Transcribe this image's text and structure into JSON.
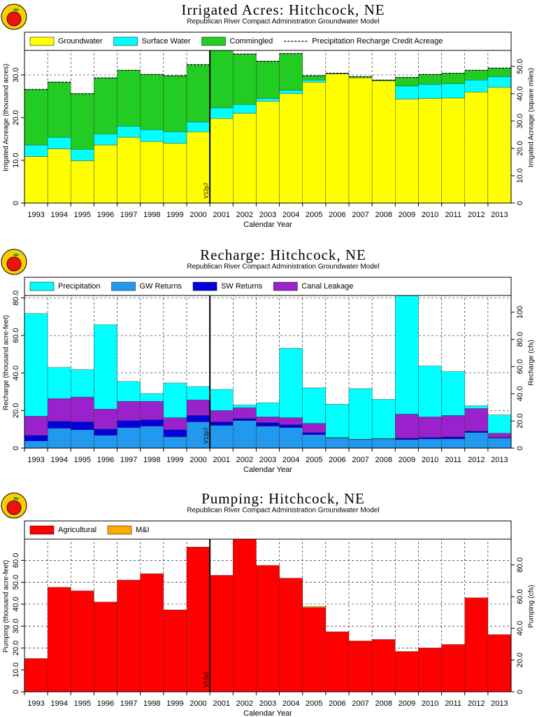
{
  "chart_data": [
    {
      "type": "bar",
      "stacked": true,
      "title": "Irrigated Acres: Hitchcock, NE",
      "subtitle": "Republican River Compact Administration Groundwater Model",
      "xlabel": "Calendar Year",
      "ylabel": "Irrigated Acreage (thousand acres)",
      "y2label": "Irrigated Acreage (square miles)",
      "annotation": "V12p7",
      "categories": [
        "1993",
        "1994",
        "1995",
        "1996",
        "1997",
        "1998",
        "1999",
        "2000",
        "2001",
        "2002",
        "2003",
        "2004",
        "2005",
        "2006",
        "2007",
        "2008",
        "2009",
        "2010",
        "2011",
        "2012",
        "2013"
      ],
      "series": [
        {
          "name": "Groundwater",
          "color": "#ffff00",
          "values": [
            10.9,
            12.7,
            9.9,
            13.6,
            15.4,
            14.4,
            14.0,
            16.7,
            19.8,
            21.0,
            23.8,
            25.6,
            28.3,
            30.2,
            29.3,
            28.6,
            24.3,
            24.5,
            24.6,
            26.0,
            27.1
          ]
        },
        {
          "name": "Surface Water",
          "color": "#00ffff",
          "values": [
            2.7,
            2.7,
            2.7,
            2.6,
            2.6,
            2.8,
            2.7,
            2.3,
            2.5,
            2.1,
            0.7,
            0.8,
            0.5,
            0,
            0,
            0,
            3.1,
            3.3,
            3.3,
            2.8,
            2.5
          ]
        },
        {
          "name": "Commingled",
          "color": "#22cc22",
          "values": [
            13.0,
            12.9,
            13.0,
            13.1,
            13.1,
            12.9,
            13.1,
            13.4,
            13.7,
            11.8,
            8.7,
            8.6,
            1.0,
            0.2,
            0.3,
            0.2,
            2.0,
            2.3,
            2.5,
            2.3,
            2.0
          ]
        },
        {
          "name": "Precipitation Recharge Credit Acreage",
          "color": "#000000",
          "dashed": true,
          "values": [
            26.6,
            28.3,
            25.6,
            29.3,
            31.1,
            30.1,
            29.8,
            32.4,
            36.0,
            34.9,
            33.2,
            35.0,
            29.8,
            30.4,
            29.6,
            28.8,
            29.4,
            30.1,
            30.4,
            31.1,
            31.6
          ]
        }
      ],
      "ylim": [
        0,
        40
      ],
      "yticks": [
        0,
        {
          "value": 10,
          "label": "10.0"
        },
        {
          "value": 20,
          "label": "20.0"
        },
        {
          "value": 30,
          "label": "30.0"
        }
      ],
      "y2lim": [
        0,
        62.5
      ],
      "y2ticks": [
        0,
        {
          "value": 10,
          "label": "10.0"
        },
        {
          "value": 20,
          "label": "20.0"
        },
        {
          "value": 30,
          "label": "30.0"
        },
        {
          "value": 40,
          "label": "40.0"
        },
        {
          "value": 50,
          "label": "50.0"
        }
      ],
      "grid": true
    },
    {
      "type": "bar",
      "stacked": true,
      "title": "Recharge: Hitchcock, NE",
      "subtitle": "Republican River Compact Administration Groundwater Model",
      "xlabel": "Calendar Year",
      "ylabel": "Recharge (thousand acre-feet)",
      "y2label": "Recharge (cfs)",
      "annotation": "V12p7",
      "categories": [
        "1993",
        "1994",
        "1995",
        "1996",
        "1997",
        "1998",
        "1999",
        "2000",
        "2001",
        "2002",
        "2003",
        "2004",
        "2005",
        "2006",
        "2007",
        "2008",
        "2009",
        "2010",
        "2011",
        "2012",
        "2013"
      ],
      "legend_order": [
        3,
        0,
        1,
        2
      ],
      "series": [
        {
          "name": "GW Returns",
          "color": "#2299ee",
          "values": [
            3.8,
            10.6,
            9.8,
            6.8,
            10.9,
            11.7,
            6.0,
            14.0,
            12.1,
            14.7,
            11.7,
            10.9,
            7.2,
            5.3,
            4.5,
            4.9,
            4.5,
            4.9,
            4.9,
            8.3,
            5.3
          ]
        },
        {
          "name": "SW Returns",
          "color": "#0000dd",
          "values": [
            3.0,
            3.7,
            4.2,
            3.4,
            3.8,
            3.4,
            3.8,
            3.4,
            1.9,
            1.1,
            1.9,
            1.6,
            1.1,
            0.1,
            0.1,
            0.1,
            0.8,
            0.8,
            1.1,
            0.8,
            0.4
          ]
        },
        {
          "name": "Canal Leakage",
          "color": "#9922cc",
          "values": [
            10.2,
            12.1,
            13.2,
            10.6,
            10.2,
            9.8,
            6.4,
            8.3,
            6.0,
            5.7,
            3.0,
            3.7,
            4.9,
            0.2,
            0.1,
            0.1,
            12.8,
            10.9,
            11.4,
            12.0,
            2.2
          ]
        },
        {
          "name": "Precipitation",
          "color": "#00ffff",
          "values": [
            54.7,
            16.6,
            14.7,
            44.9,
            10.6,
            4.2,
            18.5,
            7.1,
            11.3,
            1.5,
            7.6,
            37.0,
            18.9,
            17.8,
            27.0,
            20.9,
            64.5,
            27.2,
            23.4,
            1.5,
            9.8
          ]
        }
      ],
      "ylim": [
        0,
        91
      ],
      "yticks": [
        0,
        {
          "value": 20,
          "label": "20.0"
        },
        {
          "value": 40,
          "label": "40.0"
        },
        {
          "value": 60,
          "label": "60.0"
        },
        {
          "value": 80,
          "label": "80.0"
        }
      ],
      "y2lim": [
        0,
        125.7
      ],
      "y2ticks": [
        0,
        {
          "value": 20,
          "label": "20.0"
        },
        {
          "value": 40,
          "label": "40.0"
        },
        {
          "value": 60,
          "label": "60.0"
        },
        {
          "value": 80,
          "label": "80.0"
        },
        100
      ],
      "grid": true
    },
    {
      "type": "bar",
      "stacked": true,
      "title": "Pumping: Hitchcock, NE",
      "subtitle": "Republican River Compact Administration Groundwater Model",
      "xlabel": "Calendar Year",
      "ylabel": "Pumping (thousand acre-feet)",
      "y2label": "Pumping (cfs)",
      "annotation": "V12p7",
      "categories": [
        "1993",
        "1994",
        "1995",
        "1996",
        "1997",
        "1998",
        "1999",
        "2000",
        "2001",
        "2002",
        "2003",
        "2004",
        "2005",
        "2006",
        "2007",
        "2008",
        "2009",
        "2010",
        "2011",
        "2012",
        "2013"
      ],
      "series": [
        {
          "name": "Agricultural",
          "color": "#ff0000",
          "values": [
            15.2,
            47.7,
            46.1,
            41.0,
            51.0,
            53.9,
            37.4,
            66.1,
            53.2,
            70.3,
            57.7,
            51.9,
            38.4,
            27.4,
            23.2,
            23.9,
            18.4,
            20.0,
            21.6,
            42.9,
            26.1
          ]
        },
        {
          "name": "M&I",
          "color": "#ffaa00",
          "values": [
            0,
            0,
            0,
            0,
            0,
            0,
            0,
            0,
            0,
            0,
            0,
            0,
            0.5,
            0,
            0,
            0,
            0,
            0,
            0,
            0,
            0
          ]
        }
      ],
      "ylim": [
        0,
        78
      ],
      "yticks": [
        0,
        {
          "value": 10,
          "label": "10.0"
        },
        {
          "value": 20,
          "label": "20.0"
        },
        {
          "value": 30,
          "label": "30.0"
        },
        {
          "value": 40,
          "label": "40.0"
        },
        {
          "value": 50,
          "label": "50.0"
        },
        {
          "value": 60,
          "label": "60.0"
        }
      ],
      "y2lim": [
        0,
        107.7
      ],
      "y2ticks": [
        0,
        {
          "value": 20,
          "label": "20.0"
        },
        {
          "value": 40,
          "label": "40.0"
        },
        {
          "value": 60,
          "label": "60.0"
        },
        {
          "value": 80,
          "label": "80.0"
        }
      ],
      "grid": true
    }
  ]
}
